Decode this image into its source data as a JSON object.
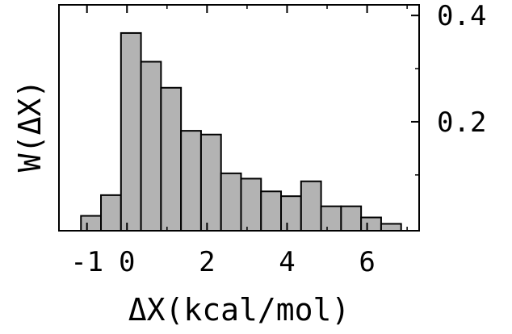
{
  "chart_data": {
    "type": "bar",
    "title": "",
    "xlabel": "ΔX(kcal/mol)",
    "ylabel": "W(ΔX)",
    "xlim": [
      -1.7,
      7.3
    ],
    "ylim": [
      -0.005,
      0.42
    ],
    "y_axis_side": "right",
    "x_ticks": [
      {
        "value": -1,
        "label": "-1"
      },
      {
        "value": 0,
        "label": "0"
      },
      {
        "value": 2,
        "label": "2"
      },
      {
        "value": 4,
        "label": "4"
      },
      {
        "value": 6,
        "label": "6"
      }
    ],
    "x_minor_ticks": [
      -1,
      1,
      3,
      5,
      7
    ],
    "y_ticks": [
      {
        "value": 0.2,
        "label": "0.2"
      },
      {
        "value": 0.4,
        "label": "0.4"
      }
    ],
    "y_minor_ticks": [
      0.1,
      0.3
    ],
    "bin_width": 0.5,
    "bin_starts": [
      -1.15,
      -0.65,
      -0.15,
      0.35,
      0.85,
      1.35,
      1.85,
      2.35,
      2.85,
      3.35,
      3.85,
      4.35,
      4.85,
      5.35,
      5.85,
      6.35
    ],
    "values": [
      0.023,
      0.062,
      0.367,
      0.313,
      0.264,
      0.183,
      0.176,
      0.103,
      0.093,
      0.069,
      0.06,
      0.088,
      0.041,
      0.041,
      0.02,
      0.008
    ],
    "bar_color": "#b3b3b3",
    "edge_color": "#000000",
    "grid": false,
    "legend": "none"
  }
}
